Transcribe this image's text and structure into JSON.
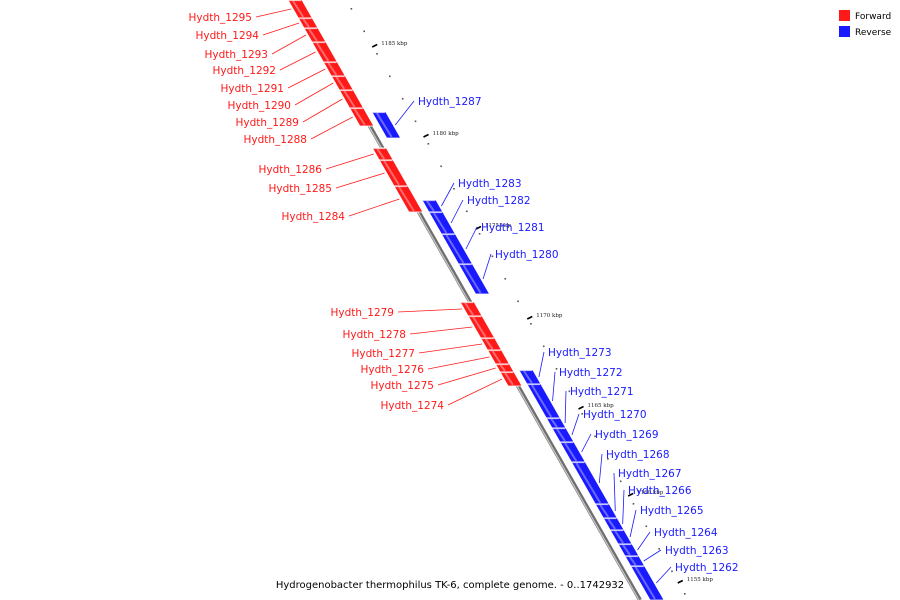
{
  "colors": {
    "forward": "#ff1a1a",
    "reverse": "#1a1aff",
    "axis": "#888888"
  },
  "legend": [
    {
      "name": "Forward",
      "color": "#ff1a1a"
    },
    {
      "name": "Reverse",
      "color": "#1a1aff"
    }
  ],
  "caption": "Hydrogenobacter thermophilus TK-6, complete genome. - 0..1742932",
  "ticks": [
    "1185 kbp",
    "1180 kbp",
    "1175 kbp",
    "1170 kbp",
    "1165 kbp",
    "1160 kbp",
    "1155 kbp"
  ],
  "genes": [
    {
      "name": "Hydth_1295",
      "strand": "forward"
    },
    {
      "name": "Hydth_1294",
      "strand": "forward"
    },
    {
      "name": "Hydth_1293",
      "strand": "forward"
    },
    {
      "name": "Hydth_1292",
      "strand": "forward"
    },
    {
      "name": "Hydth_1291",
      "strand": "forward"
    },
    {
      "name": "Hydth_1290",
      "strand": "forward"
    },
    {
      "name": "Hydth_1289",
      "strand": "forward"
    },
    {
      "name": "Hydth_1288",
      "strand": "forward"
    },
    {
      "name": "Hydth_1287",
      "strand": "reverse"
    },
    {
      "name": "Hydth_1286",
      "strand": "forward"
    },
    {
      "name": "Hydth_1285",
      "strand": "forward"
    },
    {
      "name": "Hydth_1284",
      "strand": "forward"
    },
    {
      "name": "Hydth_1283",
      "strand": "reverse"
    },
    {
      "name": "Hydth_1282",
      "strand": "reverse"
    },
    {
      "name": "Hydth_1281",
      "strand": "reverse"
    },
    {
      "name": "Hydth_1280",
      "strand": "reverse"
    },
    {
      "name": "Hydth_1279",
      "strand": "forward"
    },
    {
      "name": "Hydth_1278",
      "strand": "forward"
    },
    {
      "name": "Hydth_1277",
      "strand": "forward"
    },
    {
      "name": "Hydth_1276",
      "strand": "forward"
    },
    {
      "name": "Hydth_1275",
      "strand": "forward"
    },
    {
      "name": "Hydth_1274",
      "strand": "forward"
    },
    {
      "name": "Hydth_1273",
      "strand": "reverse"
    },
    {
      "name": "Hydth_1272",
      "strand": "reverse"
    },
    {
      "name": "Hydth_1271",
      "strand": "reverse"
    },
    {
      "name": "Hydth_1270",
      "strand": "reverse"
    },
    {
      "name": "Hydth_1269",
      "strand": "reverse"
    },
    {
      "name": "Hydth_1268",
      "strand": "reverse"
    },
    {
      "name": "Hydth_1267",
      "strand": "reverse"
    },
    {
      "name": "Hydth_1266",
      "strand": "reverse"
    },
    {
      "name": "Hydth_1265",
      "strand": "reverse"
    },
    {
      "name": "Hydth_1264",
      "strand": "reverse"
    },
    {
      "name": "Hydth_1263",
      "strand": "reverse"
    },
    {
      "name": "Hydth_1262",
      "strand": "reverse"
    }
  ]
}
